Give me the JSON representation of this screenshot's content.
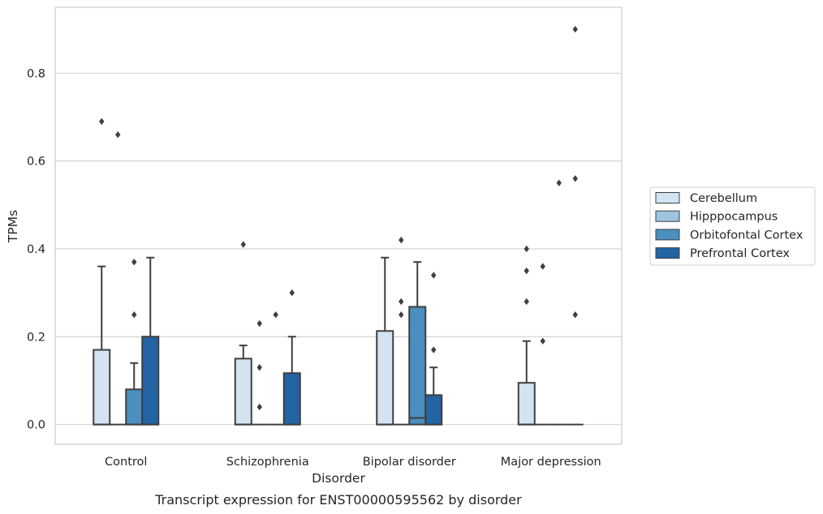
{
  "chart_data": {
    "type": "box",
    "title": "",
    "caption": "Transcript expression for ENST00000595562 by disorder",
    "xlabel": "Disorder",
    "ylabel": "TPMs",
    "ylim": [
      -0.045,
      0.95
    ],
    "yticks": [
      0.0,
      0.2,
      0.4,
      0.6,
      0.8
    ],
    "ytick_labels": [
      "0.0",
      "0.2",
      "0.4",
      "0.6",
      "0.8"
    ],
    "grid": "horizontal",
    "legend_position": "right",
    "categories": [
      "Control",
      "Schizophrenia",
      "Bipolar disorder",
      "Major depression"
    ],
    "series": [
      {
        "name": "Cerebellum",
        "color": "#d3e3f1",
        "boxes": [
          {
            "q1": 0,
            "median": 0,
            "q3": 0.17,
            "whisker_low": 0,
            "whisker_high": 0.36,
            "outliers": [
              0.69
            ]
          },
          {
            "q1": 0,
            "median": 0,
            "q3": 0.15,
            "whisker_low": 0,
            "whisker_high": 0.18,
            "outliers": [
              0.41
            ]
          },
          {
            "q1": 0,
            "median": 0,
            "q3": 0.213,
            "whisker_low": 0,
            "whisker_high": 0.38,
            "outliers": []
          },
          {
            "q1": 0,
            "median": 0,
            "q3": 0.095,
            "whisker_low": 0,
            "whisker_high": 0.19,
            "outliers": [
              0.28,
              0.35,
              0.4
            ]
          }
        ]
      },
      {
        "name": "Hipppocampus",
        "color": "#9dc5df",
        "boxes": [
          {
            "q1": 0,
            "median": 0,
            "q3": 0,
            "whisker_low": 0,
            "whisker_high": 0,
            "outliers": [
              0.66
            ]
          },
          {
            "q1": 0,
            "median": 0,
            "q3": 0,
            "whisker_low": 0,
            "whisker_high": 0,
            "outliers": [
              0.04,
              0.13,
              0.23
            ]
          },
          {
            "q1": 0,
            "median": 0,
            "q3": 0,
            "whisker_low": 0,
            "whisker_high": 0,
            "outliers": [
              0.25,
              0.28,
              0.42
            ]
          },
          {
            "q1": 0,
            "median": 0,
            "q3": 0,
            "whisker_low": 0,
            "whisker_high": 0,
            "outliers": [
              0.19,
              0.36
            ]
          }
        ]
      },
      {
        "name": "Orbitofontal Cortex",
        "color": "#4a8fc0",
        "boxes": [
          {
            "q1": 0,
            "median": 0,
            "q3": 0.08,
            "whisker_low": 0,
            "whisker_high": 0.14,
            "outliers": [
              0.25,
              0.37
            ]
          },
          {
            "q1": 0,
            "median": 0,
            "q3": 0,
            "whisker_low": 0,
            "whisker_high": 0,
            "outliers": [
              0.25
            ]
          },
          {
            "q1": 0,
            "median": 0.015,
            "q3": 0.268,
            "whisker_low": 0,
            "whisker_high": 0.37,
            "outliers": []
          },
          {
            "q1": 0,
            "median": 0,
            "q3": 0,
            "whisker_low": 0,
            "whisker_high": 0,
            "outliers": [
              0.55
            ]
          }
        ]
      },
      {
        "name": "Prefrontal Cortex",
        "color": "#2364a4",
        "boxes": [
          {
            "q1": 0,
            "median": 0,
            "q3": 0.2,
            "whisker_low": 0,
            "whisker_high": 0.38,
            "outliers": []
          },
          {
            "q1": 0,
            "median": 0,
            "q3": 0.117,
            "whisker_low": 0,
            "whisker_high": 0.2,
            "outliers": [
              0.3
            ]
          },
          {
            "q1": 0,
            "median": 0,
            "q3": 0.067,
            "whisker_low": 0,
            "whisker_high": 0.13,
            "outliers": [
              0.17,
              0.34
            ]
          },
          {
            "q1": 0,
            "median": 0,
            "q3": 0,
            "whisker_low": 0,
            "whisker_high": 0,
            "outliers": [
              0.25,
              0.56,
              0.9
            ]
          }
        ]
      }
    ]
  }
}
